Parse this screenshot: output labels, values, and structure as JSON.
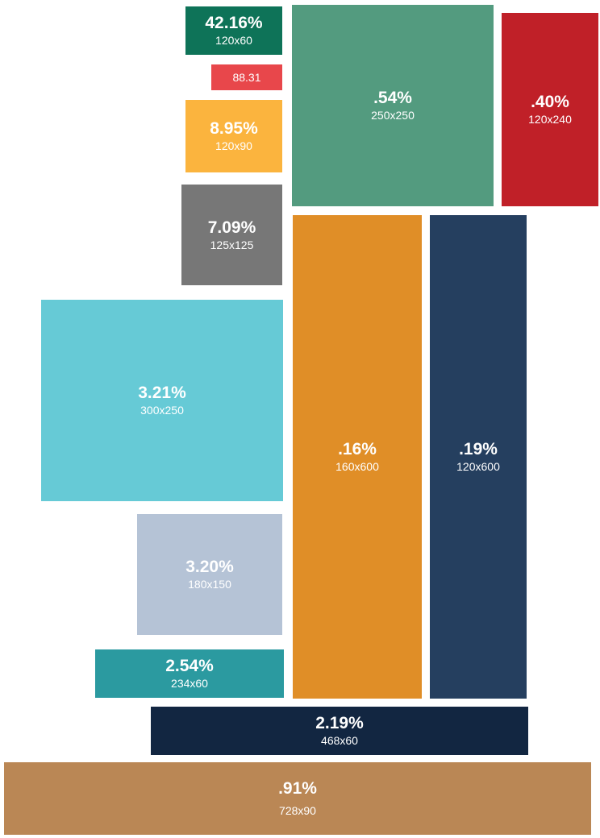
{
  "chart_data": {
    "type": "treemap",
    "title": "",
    "items": [
      {
        "value": "42.16%",
        "label": "120x60",
        "color": "#0E7358"
      },
      {
        "value": "",
        "label": "88.31",
        "color": "#E8474B"
      },
      {
        "value": "8.95%",
        "label": "120x90",
        "color": "#FBB43E"
      },
      {
        "value": ".54%",
        "label": "250x250",
        "color": "#539B7F"
      },
      {
        "value": ".40%",
        "label": "120x240",
        "color": "#C02028"
      },
      {
        "value": "7.09%",
        "label": "125x125",
        "color": "#777777"
      },
      {
        "value": ".16%",
        "label": "160x600",
        "color": "#E08E27"
      },
      {
        "value": ".19%",
        "label": "120x600",
        "color": "#253F5F"
      },
      {
        "value": "3.21%",
        "label": "300x250",
        "color": "#66CAD6"
      },
      {
        "value": "3.20%",
        "label": "180x150",
        "color": "#B5C3D6"
      },
      {
        "value": "2.54%",
        "label": "234x60",
        "color": "#2B9AA0"
      },
      {
        "value": "2.19%",
        "label": "468x60",
        "color": "#122641"
      },
      {
        "value": ".91%",
        "label": "728x90",
        "color": "#BA8755"
      }
    ]
  }
}
